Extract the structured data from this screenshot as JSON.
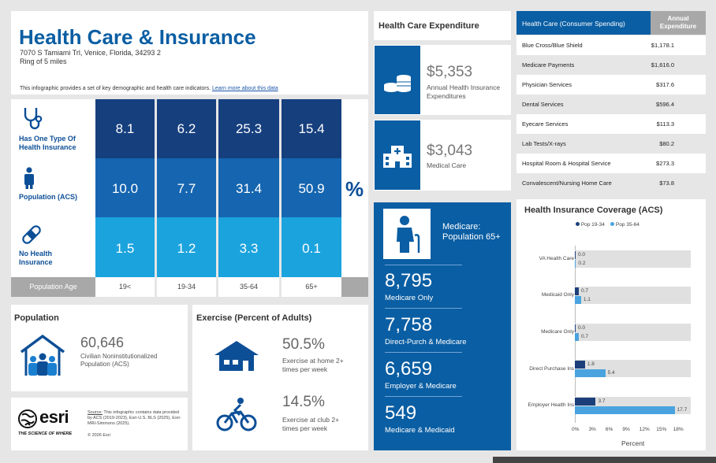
{
  "header": {
    "title": "Health Care & Insurance",
    "address": "7070 S Tamiami Trl, Venice, Florida, 34293 2",
    "ring": "Ring of 5 miles",
    "description": "This infographic provides a set of key demographic and health care indicators.",
    "learn_more": "Learn more about this data"
  },
  "indicators": {
    "rows": [
      {
        "label_line1": "Has One Type Of",
        "label_line2": "Health Insurance",
        "icon": "stethoscope-icon",
        "values": [
          "8.1",
          "6.2",
          "25.3",
          "15.4"
        ]
      },
      {
        "label_line1": "Population (ACS)",
        "label_line2": "",
        "icon": "person-icon",
        "values": [
          "10.0",
          "7.7",
          "31.4",
          "50.9"
        ]
      },
      {
        "label_line1": "No Health",
        "label_line2": "Insurance",
        "icon": "bandage-icon",
        "values": [
          "1.5",
          "1.2",
          "3.3",
          "0.1"
        ]
      }
    ],
    "age_label": "Population Age",
    "ages": [
      "19<",
      "19-34",
      "35-64",
      "65+"
    ],
    "unit": "%",
    "colors": [
      "#163f7e",
      "#1565b0",
      "#1ba3de"
    ]
  },
  "population": {
    "heading": "Population",
    "value": "60,646",
    "label_line1": "Civilian Noninstitutionalized",
    "label_line2": "Population (ACS)"
  },
  "exercise": {
    "heading": "Exercise (Percent of Adults)",
    "items": [
      {
        "icon": "house-icon",
        "value": "50.5%",
        "line1": "Exercise at home 2+",
        "line2": "times per week"
      },
      {
        "icon": "bicycle-icon",
        "value": "14.5%",
        "line1": "Exercise at club 2+",
        "line2": "times per week"
      }
    ]
  },
  "footer": {
    "logo": "esri",
    "tagline": "THE SCIENCE OF WHERE",
    "source_label": "Source:",
    "source_line1": "This infographic contains data provided",
    "source_line2": "by ACS (2019-2023), Esri-U.S. BLS (2025), Esri-",
    "source_line3": "MRI-Simmons (2025).",
    "copyright": "© 2026 Esri"
  },
  "expenditure": {
    "heading": "Health Care Expenditure",
    "items": [
      {
        "icon": "coins-icon",
        "value": "$5,353",
        "line1": "Annual Health Insurance",
        "line2": "Expenditures"
      },
      {
        "icon": "hospital-icon",
        "value": "$3,043",
        "line1": "Medical Care",
        "line2": ""
      }
    ]
  },
  "medicare": {
    "heading_line1": "Medicare:",
    "heading_line2": "Population 65+",
    "items": [
      {
        "value": "8,795",
        "label": "Medicare Only"
      },
      {
        "value": "7,758",
        "label": "Direct-Purch & Medicare"
      },
      {
        "value": "6,659",
        "label": "Employer & Medicare"
      },
      {
        "value": "549",
        "label": "Medicare & Medicaid"
      }
    ]
  },
  "spending": {
    "col1": "Health Care (Consumer Spending)",
    "col2_line1": "Annual",
    "col2_line2": "Expenditure",
    "rows": [
      {
        "name": "Blue Cross/Blue Shield",
        "value": "$1,178.1"
      },
      {
        "name": "Medicare Payments",
        "value": "$1,616.0"
      },
      {
        "name": "Physician Services",
        "value": "$317.6"
      },
      {
        "name": "Dental Services",
        "value": "$596.4"
      },
      {
        "name": "Eyecare Services",
        "value": "$113.3"
      },
      {
        "name": "Lab Tests/X-rays",
        "value": "$80.2"
      },
      {
        "name": "Hospital Room & Hospital Service",
        "value": "$273.3"
      },
      {
        "name": "Convalescent/Nursing Home Care",
        "value": "$73.8"
      }
    ]
  },
  "chart_data": {
    "type": "bar",
    "orientation": "horizontal",
    "title": "Health Insurance Coverage (ACS)",
    "categories": [
      "VA Health Care",
      "Medicaid Only",
      "Medicare Only",
      "Direct Purchase Ins",
      "Employer Health Ins"
    ],
    "series": [
      {
        "name": "Pop 19-34",
        "color": "#1c3f7a",
        "values": [
          0.0,
          0.7,
          0.0,
          1.8,
          3.7
        ],
        "labels": [
          "0.0",
          "0.7",
          "0.0",
          "1.8",
          "3.7"
        ]
      },
      {
        "name": "Pop 35-64",
        "color": "#4aa3df",
        "values": [
          0.2,
          1.1,
          0.7,
          5.4,
          17.7
        ],
        "labels": [
          "0.2",
          "1.1",
          "0.7",
          "5.4",
          "17.7"
        ]
      }
    ],
    "xlabel": "Percent",
    "xlim": [
      0,
      20
    ],
    "xticks": [
      "0%",
      "3%",
      "6%",
      "9%",
      "12%",
      "15%",
      "18%"
    ],
    "legend": "top"
  }
}
